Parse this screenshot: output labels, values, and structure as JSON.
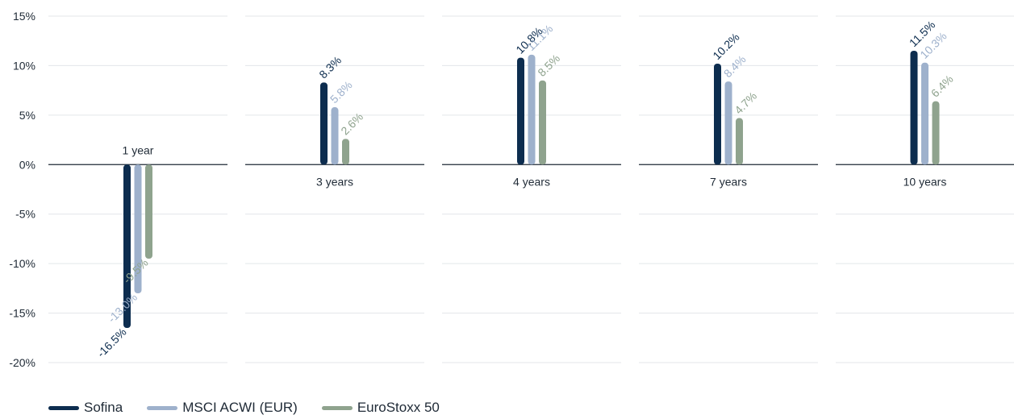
{
  "chart_data": {
    "type": "bar",
    "categories": [
      "1 year",
      "3 years",
      "4 years",
      "7 years",
      "10 years"
    ],
    "series": [
      {
        "name": "Sofina",
        "color": "#0d2d4f",
        "values": [
          -16.5,
          8.3,
          10.8,
          10.2,
          11.5
        ],
        "labels": [
          "-16.5%",
          "8.3%",
          "10.8%",
          "10.2%",
          "11.5%"
        ]
      },
      {
        "name": "MSCI ACWI (EUR)",
        "color": "#9eb1cc",
        "values": [
          -13.0,
          5.8,
          11.1,
          8.4,
          10.3
        ],
        "labels": [
          "-13.0%",
          "5.8%",
          "11.1%",
          "8.4%",
          "10.3%"
        ]
      },
      {
        "name": "EuroStoxx 50",
        "color": "#8fa38e",
        "values": [
          -9.5,
          2.6,
          8.5,
          4.7,
          6.4
        ],
        "labels": [
          "-9.5%",
          "2.6%",
          "8.5%",
          "4.7%",
          "6.4%"
        ]
      }
    ],
    "ylim": [
      -20,
      15
    ],
    "yticks": [
      15,
      10,
      5,
      0,
      -5,
      -10,
      -15,
      -20
    ],
    "ytick_labels": [
      "15%",
      "10%",
      "5%",
      "0%",
      "-5%",
      "-10%",
      "-15%",
      "-20%"
    ],
    "grid": true,
    "legend_position": "bottom-left"
  }
}
